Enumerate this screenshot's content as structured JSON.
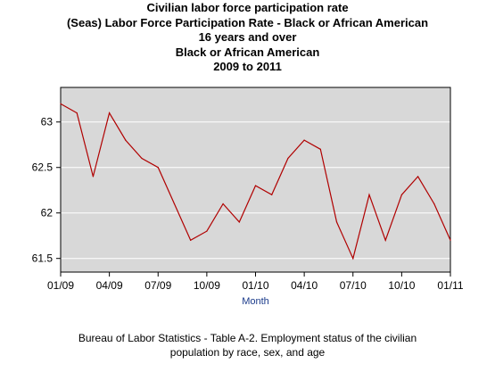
{
  "chart_data": {
    "type": "line",
    "title_lines": [
      "Civilian labor force participation rate",
      "(Seas) Labor Force Participation Rate - Black or African American",
      "16 years and over",
      "Black or African American",
      "2009 to 2011"
    ],
    "xlabel": "Month",
    "ylabel": "",
    "x": [
      "2009-01",
      "2009-02",
      "2009-03",
      "2009-04",
      "2009-05",
      "2009-06",
      "2009-07",
      "2009-08",
      "2009-09",
      "2009-10",
      "2009-11",
      "2009-12",
      "2010-01",
      "2010-02",
      "2010-03",
      "2010-04",
      "2010-05",
      "2010-06",
      "2010-07",
      "2010-08",
      "2010-09",
      "2010-10",
      "2010-11",
      "2010-12",
      "2011-01"
    ],
    "x_tick_labels": [
      "01/09",
      "04/09",
      "07/09",
      "10/09",
      "01/10",
      "04/10",
      "07/10",
      "10/10",
      "01/11"
    ],
    "x_tick_positions": [
      "2009-01",
      "2009-04",
      "2009-07",
      "2009-10",
      "2010-01",
      "2010-04",
      "2010-07",
      "2010-10",
      "2011-01"
    ],
    "y_ticks": [
      61.5,
      62,
      62.5,
      63
    ],
    "y_tick_labels": [
      "61.5",
      "62",
      "62.5",
      "63"
    ],
    "ylim": [
      61.35,
      63.38
    ],
    "series": [
      {
        "name": "",
        "color": "#b00000",
        "values": [
          63.2,
          63.1,
          62.4,
          63.1,
          62.8,
          62.6,
          62.5,
          62.1,
          61.7,
          61.8,
          62.1,
          61.9,
          62.3,
          62.2,
          62.6,
          62.8,
          62.7,
          61.9,
          61.5,
          62.2,
          61.7,
          62.2,
          62.4,
          62.1,
          61.7
        ]
      }
    ],
    "grid": true,
    "plot_background": "#d8d8d8",
    "grid_color": "#ffffff",
    "xlabel_color": "#1a3a8a"
  },
  "caption_lines": [
    "Bureau of Labor Statistics - Table A-2. Employment status of the civilian",
    "population by race, sex, and age"
  ]
}
